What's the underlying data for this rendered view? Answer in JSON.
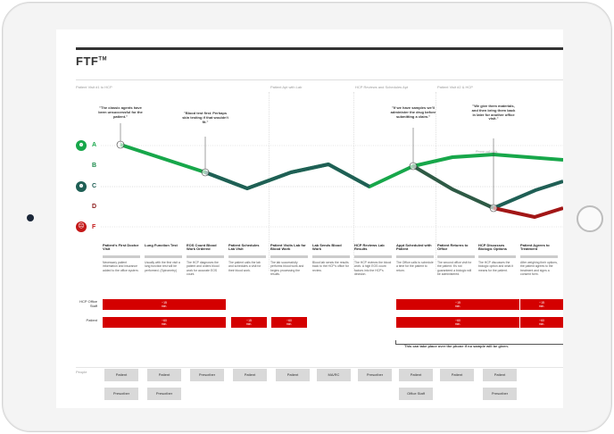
{
  "title": "FTF",
  "title_mark": "TM",
  "phases": [
    "Patient Visit #1 to HCP",
    "Patient Apt with Lab",
    "HCP Reviews and Schedules Apt",
    "Patient Visit #2 & HCP"
  ],
  "grades": [
    "A",
    "B",
    "C",
    "D",
    "F"
  ],
  "faces": {
    "happy": "☻",
    "neutral": "☻",
    "sad": "☹"
  },
  "quotes": [
    "\"The classic agents have been unsuccessful for the patient.\"",
    "\"Blood test first. Perhaps skin testing if that wouldn't fit.\"",
    "\"If we have samples we'll administer the drug before submitting a claim.\"",
    "\"We give them materials, and then bring them back in later for another office visit.\""
  ],
  "phone_call_label": "Phone call calls",
  "steps": [
    {
      "title": "Patient's First Doctor Visit",
      "desc": "Necessary patient information and insurance added to the office system."
    },
    {
      "title": "Lung Function Test",
      "desc": "Usually with the first visit a lung function test will be performed. (Spirometry)"
    },
    {
      "title": "EOS Count Blood Work Ordered",
      "desc": "The HCP diagnoses the patient and orders blood work for accurate EOS count."
    },
    {
      "title": "Patient Schedules Lab Visit",
      "desc": "The patient calls the lab and schedules a visit for their blood work."
    },
    {
      "title": "Patient Visits Lab for Blood Work",
      "desc": "The lab successfully performs blood work and begins processing the results."
    },
    {
      "title": "Lab Sends Blood Work",
      "desc": "Blood lab sends the results back to the HCP's office for review."
    },
    {
      "title": "HCP Reviews Lab Results",
      "desc": "The HCP reviews the blood work. A high EOS count factors into the HCP's decision."
    },
    {
      "title": "Appt Scheduled with Patient",
      "desc": "The Office calls to schedule a time for the patient to return."
    },
    {
      "title": "Patient Returns to Office",
      "desc": "The second office visit for the patient. It's not guaranteed a biologic will be administered."
    },
    {
      "title": "HCP Discusses Biologic Options",
      "desc": "The HCP discusses the biologic option and what it means for the patient."
    },
    {
      "title": "Patient Agrees to Treatment",
      "desc": "After weighing their options, the patient agrees to the treatment and signs a consent form."
    }
  ],
  "rows": {
    "hcp": "HCP Office Staff",
    "patient": "Patient"
  },
  "time_boxes": {
    "hcp": [
      {
        "t": "~15",
        "u": "min."
      },
      {
        "t": "~15",
        "u": "min."
      },
      {
        "t": "~15",
        "u": "min."
      }
    ],
    "patient": [
      {
        "t": "~60",
        "u": "min."
      },
      {
        "t": "~15",
        "u": "min."
      },
      {
        "t": "~60",
        "u": "min."
      },
      {
        "t": "~60",
        "u": "min."
      },
      {
        "t": "~60",
        "u": "min."
      }
    ]
  },
  "phone_note": "This can take place over the phone if no sample will be given.",
  "people_label": "People",
  "people_row1": [
    "Patient",
    "Patient",
    "Prescriber",
    "Patient",
    "Patient",
    "MA/RC",
    "Prescriber",
    "Patient",
    "Patient",
    "Patient"
  ],
  "people_row2": [
    "Prescriber",
    "Prescriber",
    "Office Staff",
    "Prescriber"
  ],
  "colors": {
    "green": "#17a74a",
    "teal": "#1f5f55",
    "red": "#c41818",
    "darkred": "#8b1a1a"
  }
}
